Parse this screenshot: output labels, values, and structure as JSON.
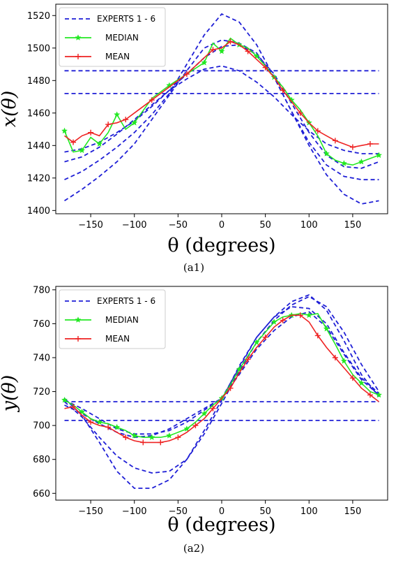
{
  "chart_data": [
    {
      "type": "line",
      "caption": "(a1)",
      "xlabel": "θ (degrees)",
      "ylabel": "x(θ)",
      "xlim": [
        -190,
        190
      ],
      "ylim": [
        1398,
        1527
      ],
      "xticks": [
        -150,
        -100,
        -50,
        0,
        50,
        100,
        150
      ],
      "yticks": [
        1400,
        1420,
        1440,
        1460,
        1480,
        1500,
        1520
      ],
      "grid": false,
      "legend_position": "top-left",
      "legend": [
        "EXPERTS 1 - 6",
        "MEDIAN",
        "MEAN"
      ],
      "colors": {
        "experts": "#1f1fd6",
        "median": "#22e822",
        "mean": "#ee2222"
      },
      "series": [
        {
          "group": "experts",
          "x": [
            -180,
            -160,
            -140,
            -120,
            -100,
            -80,
            -60,
            -40,
            -20,
            -10,
            0,
            10,
            20,
            40,
            60,
            80,
            100,
            120,
            140,
            160,
            180
          ],
          "y": [
            1486,
            1486,
            1486,
            1486,
            1486,
            1486,
            1486,
            1486,
            1486,
            1486,
            1486,
            1486,
            1486,
            1486,
            1486,
            1486,
            1486,
            1486,
            1486,
            1486,
            1486
          ]
        },
        {
          "group": "experts",
          "x": [
            -180,
            -160,
            -140,
            -120,
            -100,
            -80,
            -60,
            -40,
            -20,
            -10,
            0,
            10,
            20,
            40,
            60,
            80,
            100,
            120,
            140,
            160,
            180
          ],
          "y": [
            1472,
            1472,
            1472,
            1472,
            1472,
            1472,
            1472,
            1472,
            1472,
            1472,
            1472,
            1472,
            1472,
            1472,
            1472,
            1472,
            1472,
            1472,
            1472,
            1472,
            1472
          ]
        },
        {
          "group": "experts",
          "x": [
            -180,
            -160,
            -140,
            -120,
            -100,
            -80,
            -60,
            -40,
            -20,
            0,
            20,
            40,
            60,
            80,
            100,
            120,
            140,
            160,
            180
          ],
          "y": [
            1406,
            1413,
            1421,
            1430,
            1441,
            1456,
            1471,
            1486,
            1500,
            1505,
            1503,
            1497,
            1482,
            1461,
            1440,
            1422,
            1410,
            1404,
            1406
          ]
        },
        {
          "group": "experts",
          "x": [
            -180,
            -160,
            -140,
            -120,
            -100,
            -80,
            -60,
            -40,
            -20,
            0,
            20,
            40,
            60,
            80,
            100,
            120,
            140,
            160,
            180
          ],
          "y": [
            1419,
            1424,
            1431,
            1439,
            1448,
            1459,
            1472,
            1490,
            1508,
            1521,
            1516,
            1502,
            1482,
            1461,
            1442,
            1428,
            1421,
            1419,
            1419
          ]
        },
        {
          "group": "experts",
          "x": [
            -180,
            -160,
            -140,
            -120,
            -100,
            -80,
            -60,
            -40,
            -20,
            0,
            20,
            40,
            60,
            80,
            100,
            120,
            140,
            160,
            180
          ],
          "y": [
            1430,
            1433,
            1439,
            1447,
            1456,
            1465,
            1474,
            1481,
            1487,
            1489,
            1486,
            1479,
            1470,
            1459,
            1449,
            1441,
            1437,
            1435,
            1435
          ]
        },
        {
          "group": "experts",
          "x": [
            -180,
            -160,
            -140,
            -120,
            -100,
            -80,
            -60,
            -40,
            -20,
            0,
            20,
            40,
            60,
            80,
            100,
            120,
            140,
            160,
            180
          ],
          "y": [
            1436,
            1438,
            1442,
            1448,
            1455,
            1464,
            1474,
            1484,
            1494,
            1501,
            1502,
            1496,
            1484,
            1466,
            1448,
            1434,
            1427,
            1426,
            1430
          ]
        },
        {
          "group": "median",
          "x": [
            -180,
            -170,
            -160,
            -150,
            -140,
            -130,
            -120,
            -110,
            -100,
            -80,
            -60,
            -40,
            -20,
            -10,
            0,
            10,
            20,
            30,
            40,
            50,
            60,
            70,
            80,
            90,
            100,
            110,
            120,
            130,
            140,
            150,
            160,
            170,
            180
          ],
          "y": [
            1449,
            1436,
            1437,
            1445,
            1441,
            1448,
            1459,
            1450,
            1454,
            1469,
            1477,
            1484,
            1491,
            1503,
            1498,
            1506,
            1502,
            1500,
            1495,
            1489,
            1482,
            1476,
            1468,
            1462,
            1454,
            1446,
            1435,
            1431,
            1429,
            1428,
            1430,
            1432,
            1434
          ]
        },
        {
          "group": "mean",
          "x": [
            -180,
            -170,
            -160,
            -150,
            -140,
            -130,
            -120,
            -110,
            -100,
            -80,
            -60,
            -40,
            -20,
            -10,
            0,
            10,
            20,
            30,
            40,
            50,
            60,
            70,
            80,
            90,
            100,
            110,
            120,
            130,
            140,
            150,
            160,
            170,
            180
          ],
          "y": [
            1446,
            1442,
            1446,
            1448,
            1446,
            1453,
            1454,
            1456,
            1460,
            1468,
            1476,
            1484,
            1494,
            1499,
            1500,
            1504,
            1502,
            1498,
            1493,
            1488,
            1482,
            1474,
            1467,
            1460,
            1454,
            1449,
            1446,
            1443,
            1441,
            1439,
            1440,
            1441,
            1441
          ]
        }
      ]
    },
    {
      "type": "line",
      "caption": "(a2)",
      "xlabel": "θ (degrees)",
      "ylabel": "y(θ)",
      "xlim": [
        -190,
        190
      ],
      "ylim": [
        656,
        782
      ],
      "xticks": [
        -150,
        -100,
        -50,
        0,
        50,
        100,
        150
      ],
      "yticks": [
        660,
        680,
        700,
        720,
        740,
        760,
        780
      ],
      "grid": false,
      "legend_position": "top-left",
      "legend": [
        "EXPERTS 1 - 6",
        "MEDIAN",
        "MEAN"
      ],
      "colors": {
        "experts": "#1f1fd6",
        "median": "#22e822",
        "mean": "#ee2222"
      },
      "series": [
        {
          "group": "experts",
          "x": [
            -180,
            -150,
            -100,
            -50,
            -30,
            -20,
            0,
            20,
            60,
            80,
            100,
            115,
            120,
            150,
            180
          ],
          "y": [
            714,
            714,
            714,
            714,
            714,
            714,
            714,
            714,
            714,
            714,
            714,
            714,
            714,
            714,
            714
          ]
        },
        {
          "group": "experts",
          "x": [
            -180,
            -150,
            -100,
            -50,
            0,
            50,
            80,
            100,
            110,
            115,
            120,
            150,
            180
          ],
          "y": [
            703,
            703,
            703,
            703,
            703,
            703,
            703,
            703,
            703,
            703,
            703,
            703,
            703
          ]
        },
        {
          "group": "experts",
          "x": [
            -180,
            -160,
            -140,
            -120,
            -100,
            -80,
            -60,
            -40,
            -20,
            0,
            20,
            40,
            60,
            80,
            100,
            120,
            140,
            160,
            180
          ],
          "y": [
            716,
            706,
            690,
            673,
            663,
            663,
            668,
            680,
            697,
            715,
            735,
            752,
            764,
            773,
            777,
            768,
            750,
            730,
            717
          ]
        },
        {
          "group": "experts",
          "x": [
            -180,
            -160,
            -140,
            -120,
            -100,
            -80,
            -60,
            -40,
            -20,
            0,
            20,
            40,
            60,
            80,
            100,
            120,
            140,
            160,
            180
          ],
          "y": [
            714,
            705,
            693,
            682,
            675,
            672,
            673,
            680,
            695,
            713,
            732,
            749,
            762,
            771,
            776,
            770,
            755,
            736,
            720
          ]
        },
        {
          "group": "experts",
          "x": [
            -180,
            -160,
            -140,
            -120,
            -100,
            -80,
            -60,
            -40,
            -20,
            0,
            20,
            40,
            60,
            80,
            100,
            120,
            140,
            160,
            180
          ],
          "y": [
            712,
            707,
            701,
            696,
            693,
            694,
            698,
            704,
            710,
            716,
            730,
            745,
            756,
            764,
            767,
            758,
            742,
            727,
            718
          ]
        },
        {
          "group": "experts",
          "x": [
            -180,
            -160,
            -140,
            -120,
            -100,
            -80,
            -60,
            -40,
            -20,
            0,
            20,
            40,
            60,
            80,
            100,
            120,
            140,
            160,
            180
          ],
          "y": [
            715,
            710,
            704,
            698,
            695,
            695,
            697,
            702,
            709,
            716,
            734,
            752,
            764,
            770,
            769,
            760,
            743,
            728,
            719
          ]
        },
        {
          "group": "median",
          "x": [
            -180,
            -170,
            -160,
            -150,
            -140,
            -130,
            -120,
            -110,
            -100,
            -90,
            -80,
            -70,
            -60,
            -50,
            -40,
            -30,
            -20,
            -10,
            0,
            10,
            20,
            30,
            40,
            50,
            60,
            70,
            80,
            90,
            100,
            110,
            120,
            130,
            140,
            150,
            160,
            170,
            180
          ],
          "y": [
            715,
            712,
            708,
            704,
            702,
            701,
            699,
            697,
            694,
            693,
            693,
            693,
            694,
            696,
            698,
            702,
            707,
            712,
            716,
            724,
            733,
            741,
            749,
            755,
            761,
            764,
            765,
            766,
            765,
            766,
            757,
            748,
            738,
            730,
            725,
            720,
            718
          ]
        },
        {
          "group": "mean",
          "x": [
            -180,
            -170,
            -160,
            -150,
            -140,
            -130,
            -120,
            -110,
            -100,
            -90,
            -80,
            -70,
            -60,
            -50,
            -40,
            -30,
            -20,
            -10,
            0,
            10,
            20,
            30,
            40,
            50,
            60,
            70,
            80,
            90,
            100,
            110,
            120,
            130,
            140,
            150,
            160,
            170,
            180
          ],
          "y": [
            710,
            711,
            706,
            702,
            700,
            699,
            696,
            693,
            691,
            690,
            690,
            690,
            691,
            693,
            696,
            700,
            704,
            710,
            716,
            722,
            731,
            739,
            746,
            752,
            758,
            762,
            765,
            765,
            761,
            753,
            746,
            740,
            734,
            728,
            722,
            718,
            714
          ]
        }
      ]
    }
  ]
}
